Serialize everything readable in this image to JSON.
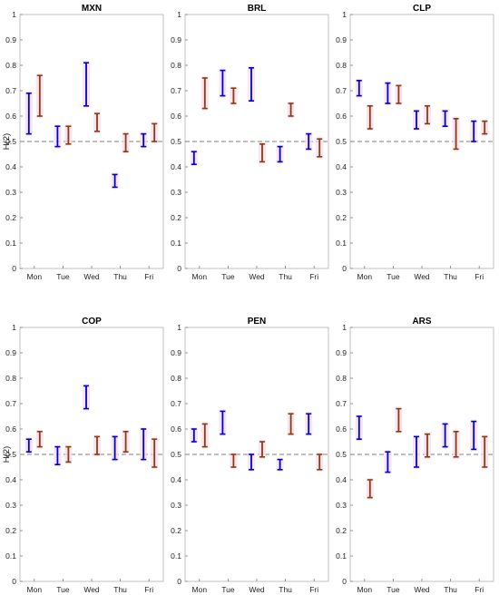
{
  "chart_data": [
    {
      "type": "errorbar",
      "title": "MXN",
      "ylabel": "H(2)",
      "categories": [
        "Mon",
        "Tue",
        "Wed",
        "Thu",
        "Fri"
      ],
      "ylim": [
        0,
        1
      ],
      "yticks": [
        "0",
        "0.1",
        "0.2",
        "0.3",
        "0.4",
        "0.5",
        "0.6",
        "0.7",
        "0.8",
        "0.9",
        "1"
      ],
      "reference_line": 0.5,
      "series": [
        {
          "color": "#0000cc",
          "intervals": [
            [
              0.53,
              0.69
            ],
            [
              0.48,
              0.56
            ],
            [
              0.64,
              0.81
            ],
            [
              0.32,
              0.37
            ],
            [
              0.48,
              0.53
            ]
          ]
        },
        {
          "color": "#8b3a0f",
          "intervals": [
            [
              0.6,
              0.76
            ],
            [
              0.49,
              0.56
            ],
            [
              0.54,
              0.61
            ],
            [
              0.46,
              0.53
            ],
            [
              0.5,
              0.57
            ]
          ]
        }
      ]
    },
    {
      "type": "errorbar",
      "title": "BRL",
      "categories": [
        "Mon",
        "Tue",
        "Wed",
        "Thu",
        "Fri"
      ],
      "ylim": [
        0,
        1
      ],
      "yticks": [
        "0",
        "0.1",
        "0.2",
        "0.3",
        "0.4",
        "0.5",
        "0.6",
        "0.7",
        "0.8",
        "0.9",
        "1"
      ],
      "reference_line": 0.5,
      "series": [
        {
          "color": "#0000cc",
          "intervals": [
            [
              0.41,
              0.46
            ],
            [
              0.68,
              0.78
            ],
            [
              0.66,
              0.79
            ],
            [
              0.42,
              0.48
            ],
            [
              0.47,
              0.53
            ]
          ]
        },
        {
          "color": "#8b3a0f",
          "intervals": [
            [
              0.63,
              0.75
            ],
            [
              0.65,
              0.71
            ],
            [
              0.42,
              0.49
            ],
            [
              0.6,
              0.65
            ],
            [
              0.44,
              0.51
            ]
          ]
        }
      ]
    },
    {
      "type": "errorbar",
      "title": "CLP",
      "categories": [
        "Mon",
        "Tue",
        "Wed",
        "Thu",
        "Fri"
      ],
      "ylim": [
        0,
        1
      ],
      "yticks": [
        "0",
        "0.1",
        "0.2",
        "0.3",
        "0.4",
        "0.5",
        "0.6",
        "0.7",
        "0.8",
        "0.9",
        "1"
      ],
      "reference_line": 0.5,
      "series": [
        {
          "color": "#0000cc",
          "intervals": [
            [
              0.68,
              0.74
            ],
            [
              0.65,
              0.73
            ],
            [
              0.55,
              0.62
            ],
            [
              0.56,
              0.62
            ],
            [
              0.5,
              0.58
            ]
          ]
        },
        {
          "color": "#8b3a0f",
          "intervals": [
            [
              0.55,
              0.64
            ],
            [
              0.65,
              0.72
            ],
            [
              0.57,
              0.64
            ],
            [
              0.47,
              0.59
            ],
            [
              0.53,
              0.58
            ]
          ]
        }
      ]
    },
    {
      "type": "errorbar",
      "title": "COP",
      "ylabel": "H(2)",
      "categories": [
        "Mon",
        "Tue",
        "Wed",
        "Thu",
        "Fri"
      ],
      "ylim": [
        0,
        1
      ],
      "yticks": [
        "0",
        "0.1",
        "0.2",
        "0.3",
        "0.4",
        "0.5",
        "0.6",
        "0.7",
        "0.8",
        "0.9",
        "1"
      ],
      "reference_line": 0.5,
      "series": [
        {
          "color": "#0000cc",
          "intervals": [
            [
              0.51,
              0.56
            ],
            [
              0.46,
              0.53
            ],
            [
              0.68,
              0.77
            ],
            [
              0.48,
              0.57
            ],
            [
              0.48,
              0.6
            ]
          ]
        },
        {
          "color": "#8b3a0f",
          "intervals": [
            [
              0.53,
              0.59
            ],
            [
              0.47,
              0.53
            ],
            [
              0.5,
              0.57
            ],
            [
              0.51,
              0.59
            ],
            [
              0.45,
              0.56
            ]
          ]
        }
      ]
    },
    {
      "type": "errorbar",
      "title": "PEN",
      "categories": [
        "Mon",
        "Tue",
        "Wed",
        "Thu",
        "Fri"
      ],
      "ylim": [
        0,
        1
      ],
      "yticks": [
        "0",
        "0.1",
        "0.2",
        "0.3",
        "0.4",
        "0.5",
        "0.6",
        "0.7",
        "0.8",
        "0.9",
        "1"
      ],
      "reference_line": 0.5,
      "series": [
        {
          "color": "#0000cc",
          "intervals": [
            [
              0.55,
              0.6
            ],
            [
              0.58,
              0.67
            ],
            [
              0.44,
              0.5
            ],
            [
              0.44,
              0.48
            ],
            [
              0.58,
              0.66
            ]
          ]
        },
        {
          "color": "#8b3a0f",
          "intervals": [
            [
              0.53,
              0.62
            ],
            [
              0.45,
              0.5
            ],
            [
              0.49,
              0.55
            ],
            [
              0.58,
              0.66
            ],
            [
              0.44,
              0.5
            ]
          ]
        }
      ]
    },
    {
      "type": "errorbar",
      "title": "ARS",
      "categories": [
        "Mon",
        "Tue",
        "Wed",
        "Thu",
        "Fri"
      ],
      "ylim": [
        0,
        1
      ],
      "yticks": [
        "0",
        "0.1",
        "0.2",
        "0.3",
        "0.4",
        "0.5",
        "0.6",
        "0.7",
        "0.8",
        "0.9",
        "1"
      ],
      "reference_line": 0.5,
      "series": [
        {
          "color": "#0000cc",
          "intervals": [
            [
              0.56,
              0.65
            ],
            [
              0.43,
              0.51
            ],
            [
              0.45,
              0.57
            ],
            [
              0.53,
              0.62
            ],
            [
              0.52,
              0.63
            ]
          ]
        },
        {
          "color": "#8b3a0f",
          "intervals": [
            [
              0.33,
              0.4
            ],
            [
              0.59,
              0.68
            ],
            [
              0.49,
              0.58
            ],
            [
              0.49,
              0.59
            ],
            [
              0.45,
              0.57
            ]
          ]
        }
      ]
    }
  ]
}
